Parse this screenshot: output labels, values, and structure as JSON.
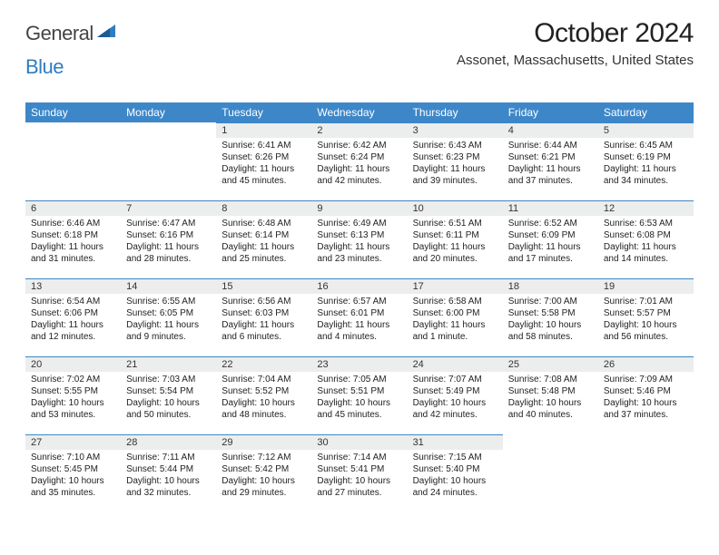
{
  "logo": {
    "general": "General",
    "blue": "Blue"
  },
  "title": "October 2024",
  "location": "Assonet, Massachusetts, United States",
  "colors": {
    "header_bg": "#3d87c9",
    "header_text": "#ffffff",
    "daybar_bg": "#eceded",
    "daybar_border": "#3d87c9",
    "logo_blue": "#2f7cc0",
    "logo_gray": "#444444"
  },
  "day_headers": [
    "Sunday",
    "Monday",
    "Tuesday",
    "Wednesday",
    "Thursday",
    "Friday",
    "Saturday"
  ],
  "weeks": [
    [
      null,
      null,
      {
        "n": "1",
        "sr": "Sunrise: 6:41 AM",
        "ss": "Sunset: 6:26 PM",
        "dl": "Daylight: 11 hours and 45 minutes."
      },
      {
        "n": "2",
        "sr": "Sunrise: 6:42 AM",
        "ss": "Sunset: 6:24 PM",
        "dl": "Daylight: 11 hours and 42 minutes."
      },
      {
        "n": "3",
        "sr": "Sunrise: 6:43 AM",
        "ss": "Sunset: 6:23 PM",
        "dl": "Daylight: 11 hours and 39 minutes."
      },
      {
        "n": "4",
        "sr": "Sunrise: 6:44 AM",
        "ss": "Sunset: 6:21 PM",
        "dl": "Daylight: 11 hours and 37 minutes."
      },
      {
        "n": "5",
        "sr": "Sunrise: 6:45 AM",
        "ss": "Sunset: 6:19 PM",
        "dl": "Daylight: 11 hours and 34 minutes."
      }
    ],
    [
      {
        "n": "6",
        "sr": "Sunrise: 6:46 AM",
        "ss": "Sunset: 6:18 PM",
        "dl": "Daylight: 11 hours and 31 minutes."
      },
      {
        "n": "7",
        "sr": "Sunrise: 6:47 AM",
        "ss": "Sunset: 6:16 PM",
        "dl": "Daylight: 11 hours and 28 minutes."
      },
      {
        "n": "8",
        "sr": "Sunrise: 6:48 AM",
        "ss": "Sunset: 6:14 PM",
        "dl": "Daylight: 11 hours and 25 minutes."
      },
      {
        "n": "9",
        "sr": "Sunrise: 6:49 AM",
        "ss": "Sunset: 6:13 PM",
        "dl": "Daylight: 11 hours and 23 minutes."
      },
      {
        "n": "10",
        "sr": "Sunrise: 6:51 AM",
        "ss": "Sunset: 6:11 PM",
        "dl": "Daylight: 11 hours and 20 minutes."
      },
      {
        "n": "11",
        "sr": "Sunrise: 6:52 AM",
        "ss": "Sunset: 6:09 PM",
        "dl": "Daylight: 11 hours and 17 minutes."
      },
      {
        "n": "12",
        "sr": "Sunrise: 6:53 AM",
        "ss": "Sunset: 6:08 PM",
        "dl": "Daylight: 11 hours and 14 minutes."
      }
    ],
    [
      {
        "n": "13",
        "sr": "Sunrise: 6:54 AM",
        "ss": "Sunset: 6:06 PM",
        "dl": "Daylight: 11 hours and 12 minutes."
      },
      {
        "n": "14",
        "sr": "Sunrise: 6:55 AM",
        "ss": "Sunset: 6:05 PM",
        "dl": "Daylight: 11 hours and 9 minutes."
      },
      {
        "n": "15",
        "sr": "Sunrise: 6:56 AM",
        "ss": "Sunset: 6:03 PM",
        "dl": "Daylight: 11 hours and 6 minutes."
      },
      {
        "n": "16",
        "sr": "Sunrise: 6:57 AM",
        "ss": "Sunset: 6:01 PM",
        "dl": "Daylight: 11 hours and 4 minutes."
      },
      {
        "n": "17",
        "sr": "Sunrise: 6:58 AM",
        "ss": "Sunset: 6:00 PM",
        "dl": "Daylight: 11 hours and 1 minute."
      },
      {
        "n": "18",
        "sr": "Sunrise: 7:00 AM",
        "ss": "Sunset: 5:58 PM",
        "dl": "Daylight: 10 hours and 58 minutes."
      },
      {
        "n": "19",
        "sr": "Sunrise: 7:01 AM",
        "ss": "Sunset: 5:57 PM",
        "dl": "Daylight: 10 hours and 56 minutes."
      }
    ],
    [
      {
        "n": "20",
        "sr": "Sunrise: 7:02 AM",
        "ss": "Sunset: 5:55 PM",
        "dl": "Daylight: 10 hours and 53 minutes."
      },
      {
        "n": "21",
        "sr": "Sunrise: 7:03 AM",
        "ss": "Sunset: 5:54 PM",
        "dl": "Daylight: 10 hours and 50 minutes."
      },
      {
        "n": "22",
        "sr": "Sunrise: 7:04 AM",
        "ss": "Sunset: 5:52 PM",
        "dl": "Daylight: 10 hours and 48 minutes."
      },
      {
        "n": "23",
        "sr": "Sunrise: 7:05 AM",
        "ss": "Sunset: 5:51 PM",
        "dl": "Daylight: 10 hours and 45 minutes."
      },
      {
        "n": "24",
        "sr": "Sunrise: 7:07 AM",
        "ss": "Sunset: 5:49 PM",
        "dl": "Daylight: 10 hours and 42 minutes."
      },
      {
        "n": "25",
        "sr": "Sunrise: 7:08 AM",
        "ss": "Sunset: 5:48 PM",
        "dl": "Daylight: 10 hours and 40 minutes."
      },
      {
        "n": "26",
        "sr": "Sunrise: 7:09 AM",
        "ss": "Sunset: 5:46 PM",
        "dl": "Daylight: 10 hours and 37 minutes."
      }
    ],
    [
      {
        "n": "27",
        "sr": "Sunrise: 7:10 AM",
        "ss": "Sunset: 5:45 PM",
        "dl": "Daylight: 10 hours and 35 minutes."
      },
      {
        "n": "28",
        "sr": "Sunrise: 7:11 AM",
        "ss": "Sunset: 5:44 PM",
        "dl": "Daylight: 10 hours and 32 minutes."
      },
      {
        "n": "29",
        "sr": "Sunrise: 7:12 AM",
        "ss": "Sunset: 5:42 PM",
        "dl": "Daylight: 10 hours and 29 minutes."
      },
      {
        "n": "30",
        "sr": "Sunrise: 7:14 AM",
        "ss": "Sunset: 5:41 PM",
        "dl": "Daylight: 10 hours and 27 minutes."
      },
      {
        "n": "31",
        "sr": "Sunrise: 7:15 AM",
        "ss": "Sunset: 5:40 PM",
        "dl": "Daylight: 10 hours and 24 minutes."
      },
      null,
      null
    ]
  ]
}
